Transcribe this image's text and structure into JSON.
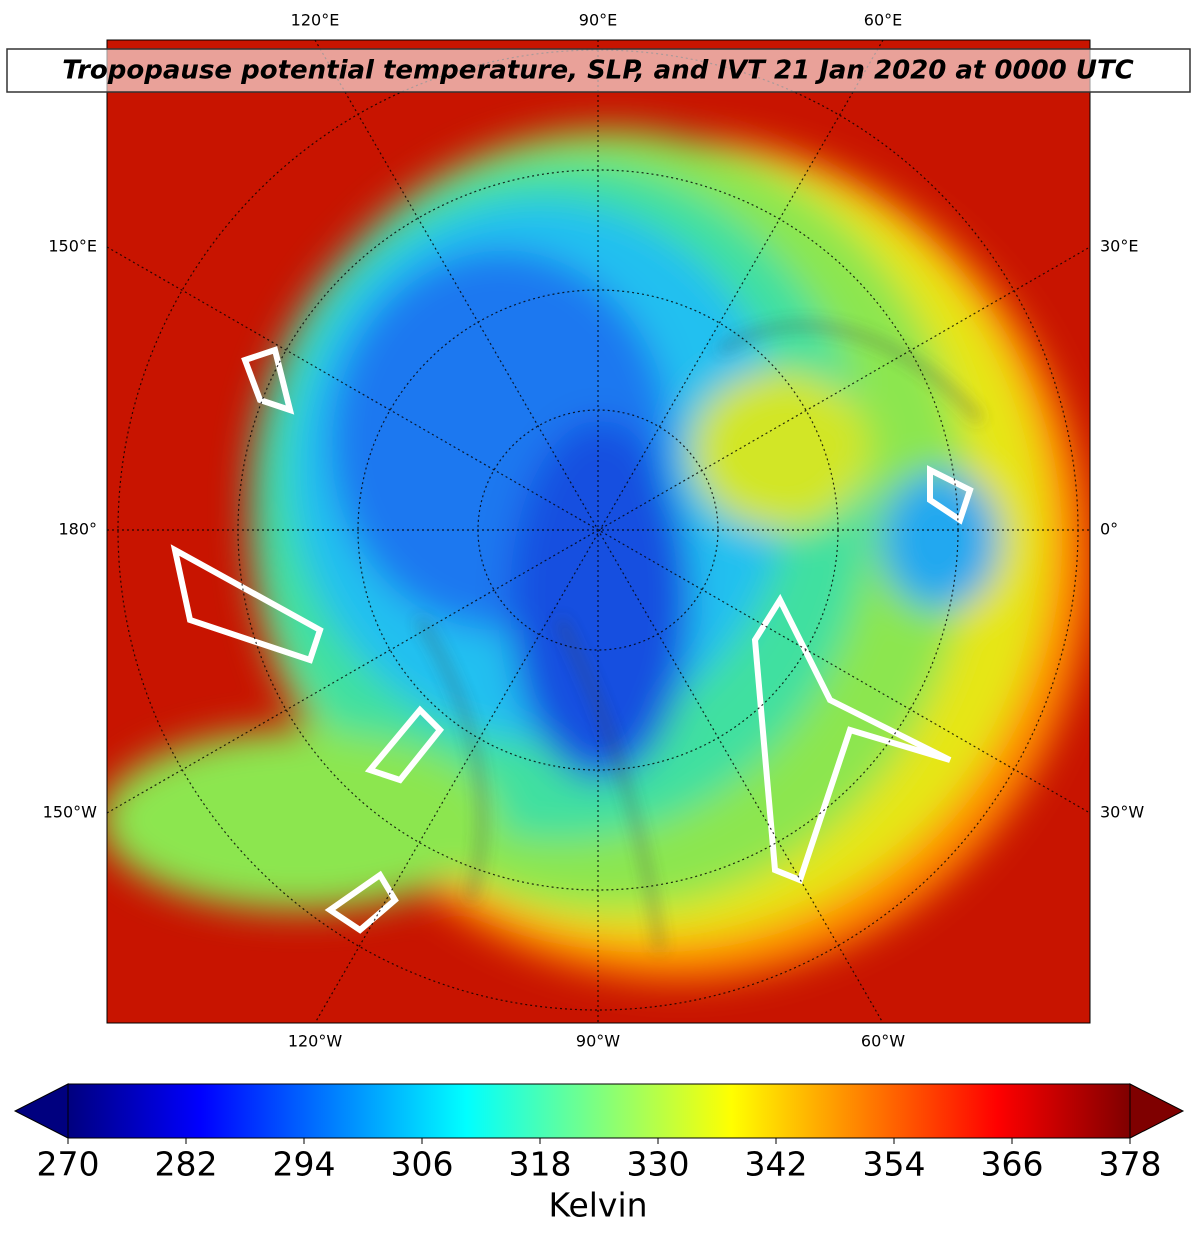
{
  "title": "Tropopause potential temperature, SLP, and IVT 21 Jan 2020 at 0000 UTC",
  "map": {
    "top_labels": [
      "120°E",
      "90°E",
      "60°E"
    ],
    "bottom_labels": [
      "120°W",
      "90°W",
      "60°W"
    ],
    "left_labels": [
      "150°E",
      "180°",
      "150°W"
    ],
    "right_labels": [
      "30°E",
      "0°",
      "30°W"
    ]
  },
  "colorbar": {
    "lim": [
      270,
      378
    ],
    "ticks": [
      270,
      282,
      294,
      306,
      318,
      330,
      342,
      354,
      366,
      378
    ],
    "label": "Kelvin",
    "colormap": [
      "#00007f",
      "#0000ff",
      "#007fff",
      "#00ffff",
      "#7fff7f",
      "#ffff00",
      "#ff7f00",
      "#ff0000",
      "#7f0000"
    ]
  }
}
